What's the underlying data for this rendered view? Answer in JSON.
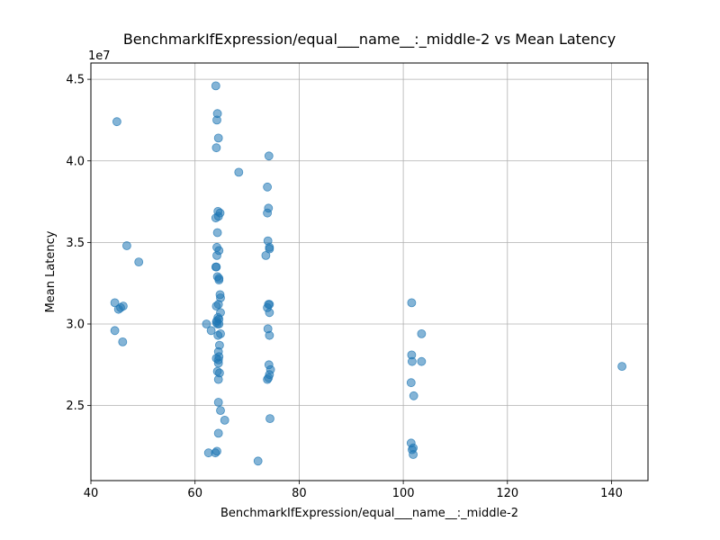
{
  "chart_data": {
    "type": "scatter",
    "title": "BenchmarkIfExpression/equal___name__:_middle-2 vs Mean Latency",
    "xlabel": "BenchmarkIfExpression/equal___name__:_middle-2",
    "ylabel": "Mean Latency",
    "y_offset_label": "1e7",
    "xlim": [
      40,
      147
    ],
    "ylim": [
      2.04,
      4.6
    ],
    "xticks": [
      40,
      60,
      80,
      100,
      120,
      140
    ],
    "yticks": [
      2.5,
      3.0,
      3.5,
      4.0,
      4.5
    ],
    "xtick_labels": [
      "40",
      "60",
      "80",
      "100",
      "120",
      "140"
    ],
    "ytick_labels": [
      "2.5",
      "3.0",
      "3.5",
      "4.0",
      "4.5"
    ],
    "grid": true,
    "point_color": "#1f77b4",
    "point_alpha": 0.55,
    "series": [
      {
        "x": [
          45.0,
          46.9,
          49.2,
          44.6,
          45.3,
          45.7,
          46.2,
          44.6,
          46.1,
          64.0,
          64.3,
          64.2,
          64.5,
          64.1,
          68.4,
          64.4,
          64.8,
          64.5,
          64.0,
          64.3,
          64.2,
          64.6,
          64.2,
          64.0,
          64.1,
          64.3,
          64.6,
          64.6,
          64.8,
          64.9,
          64.5,
          64.1,
          64.4,
          64.9,
          64.2,
          64.6,
          62.2,
          64.3,
          64.6,
          63.1,
          64.1,
          64.9,
          64.4,
          64.7,
          64.5,
          64.1,
          64.5,
          64.6,
          64.5,
          64.7,
          64.3,
          64.5,
          64.9,
          65.7,
          64.5,
          64.5,
          64.2,
          63.9,
          62.6,
          74.2,
          73.9,
          74.1,
          73.9,
          74.0,
          74.3,
          74.3,
          73.6,
          74.1,
          74.3,
          73.9,
          74.3,
          74.0,
          74.3,
          74.2,
          74.5,
          74.3,
          74.1,
          73.9,
          74.4,
          72.1,
          101.6,
          103.5,
          101.6,
          101.7,
          103.5,
          101.5,
          102.0,
          101.5,
          101.9,
          101.7,
          101.9,
          142.0
        ],
        "y": [
          4.24,
          3.48,
          3.38,
          3.13,
          3.09,
          3.1,
          3.11,
          2.96,
          2.89,
          4.46,
          4.29,
          4.25,
          4.14,
          4.08,
          3.93,
          3.69,
          3.68,
          3.66,
          3.65,
          3.56,
          3.47,
          3.45,
          3.42,
          3.35,
          3.35,
          3.29,
          3.28,
          3.27,
          3.18,
          3.16,
          3.12,
          3.11,
          3.04,
          3.07,
          3.02,
          3.03,
          3.0,
          3.0,
          3.0,
          2.96,
          3.01,
          2.94,
          2.93,
          2.87,
          2.83,
          2.79,
          2.78,
          2.8,
          2.76,
          2.7,
          2.71,
          2.66,
          2.47,
          2.41,
          2.52,
          2.33,
          2.22,
          2.21,
          2.21,
          4.03,
          3.84,
          3.71,
          3.68,
          3.51,
          3.47,
          3.46,
          3.42,
          3.12,
          3.12,
          3.1,
          3.07,
          2.97,
          2.93,
          2.75,
          2.72,
          2.69,
          2.67,
          2.66,
          2.42,
          2.16,
          3.13,
          2.94,
          2.81,
          2.77,
          2.77,
          2.64,
          2.56,
          2.27,
          2.24,
          2.23,
          2.2,
          2.74
        ]
      }
    ]
  }
}
